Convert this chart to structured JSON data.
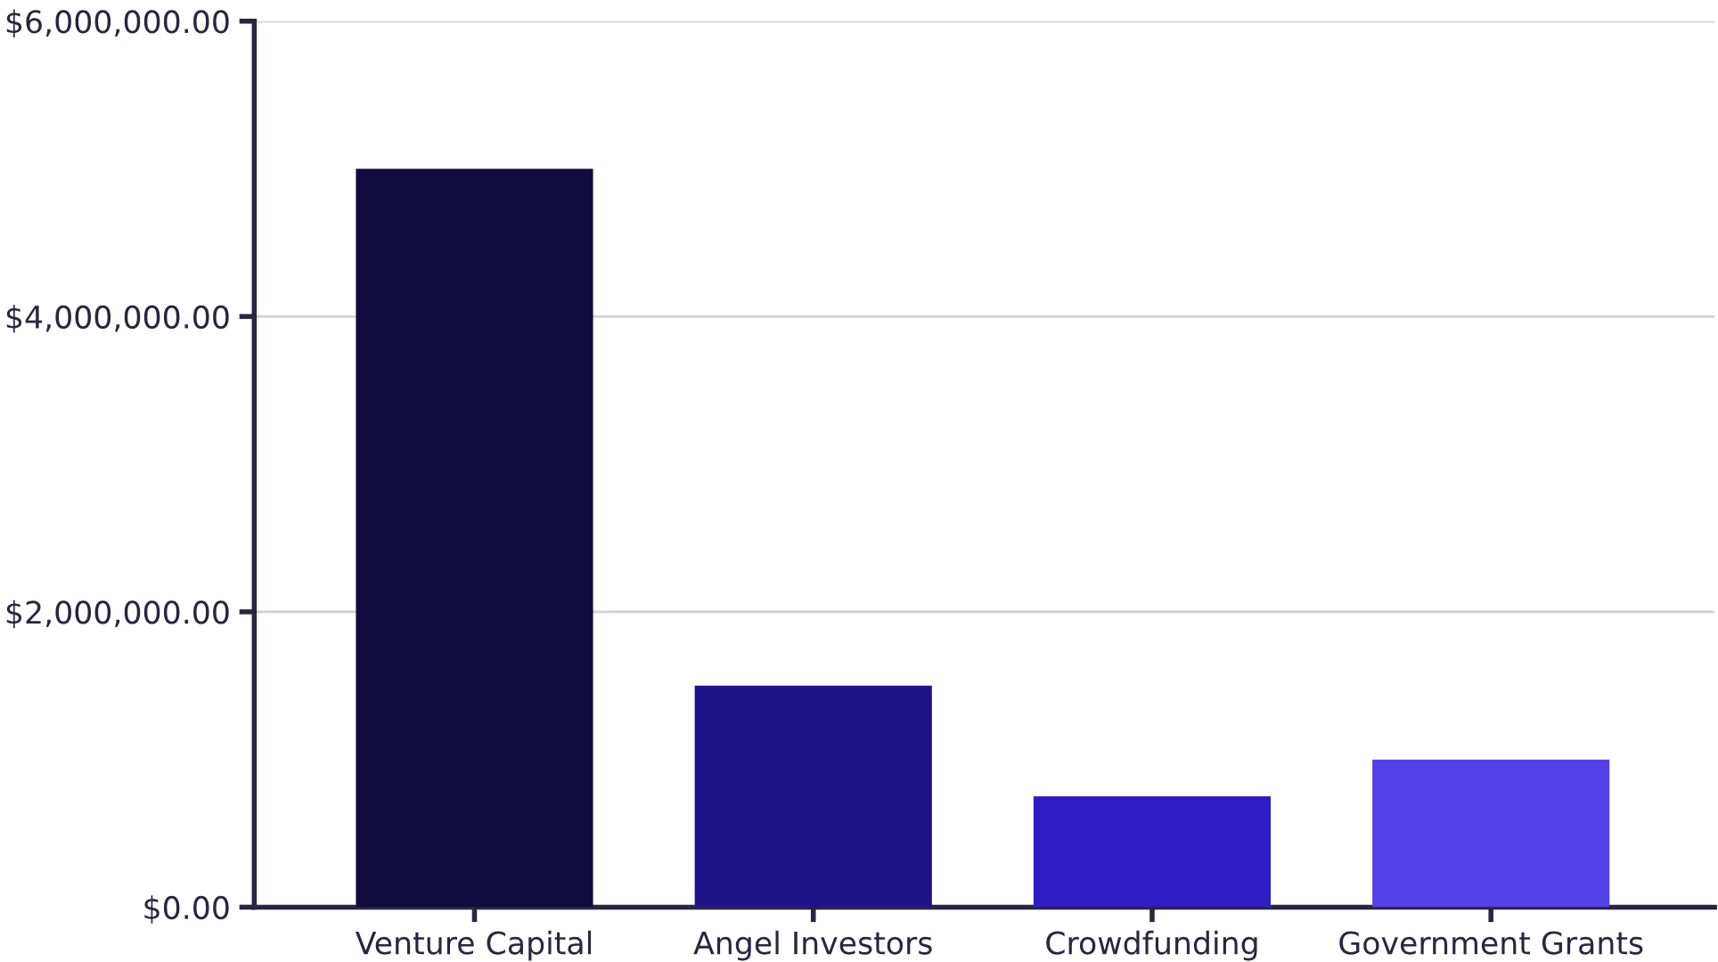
{
  "chart_data": {
    "type": "bar",
    "categories": [
      "Venture Capital",
      "Angel Investors",
      "Crowdfunding",
      "Government Grants"
    ],
    "values": [
      5000000,
      1500000,
      750000,
      1000000
    ],
    "colors": [
      "#120b40",
      "#20138a",
      "#2e1cc2",
      "#5340e6"
    ],
    "ylim": [
      0,
      6000000
    ],
    "yticks": [
      {
        "value": 0,
        "label": "$0.00"
      },
      {
        "value": 2000000,
        "label": "$2,000,000.00"
      },
      {
        "value": 4000000,
        "label": "$4,000,000.00"
      },
      {
        "value": 6000000,
        "label": "$6,000,000.00"
      }
    ],
    "grid": "y",
    "legend": false
  }
}
